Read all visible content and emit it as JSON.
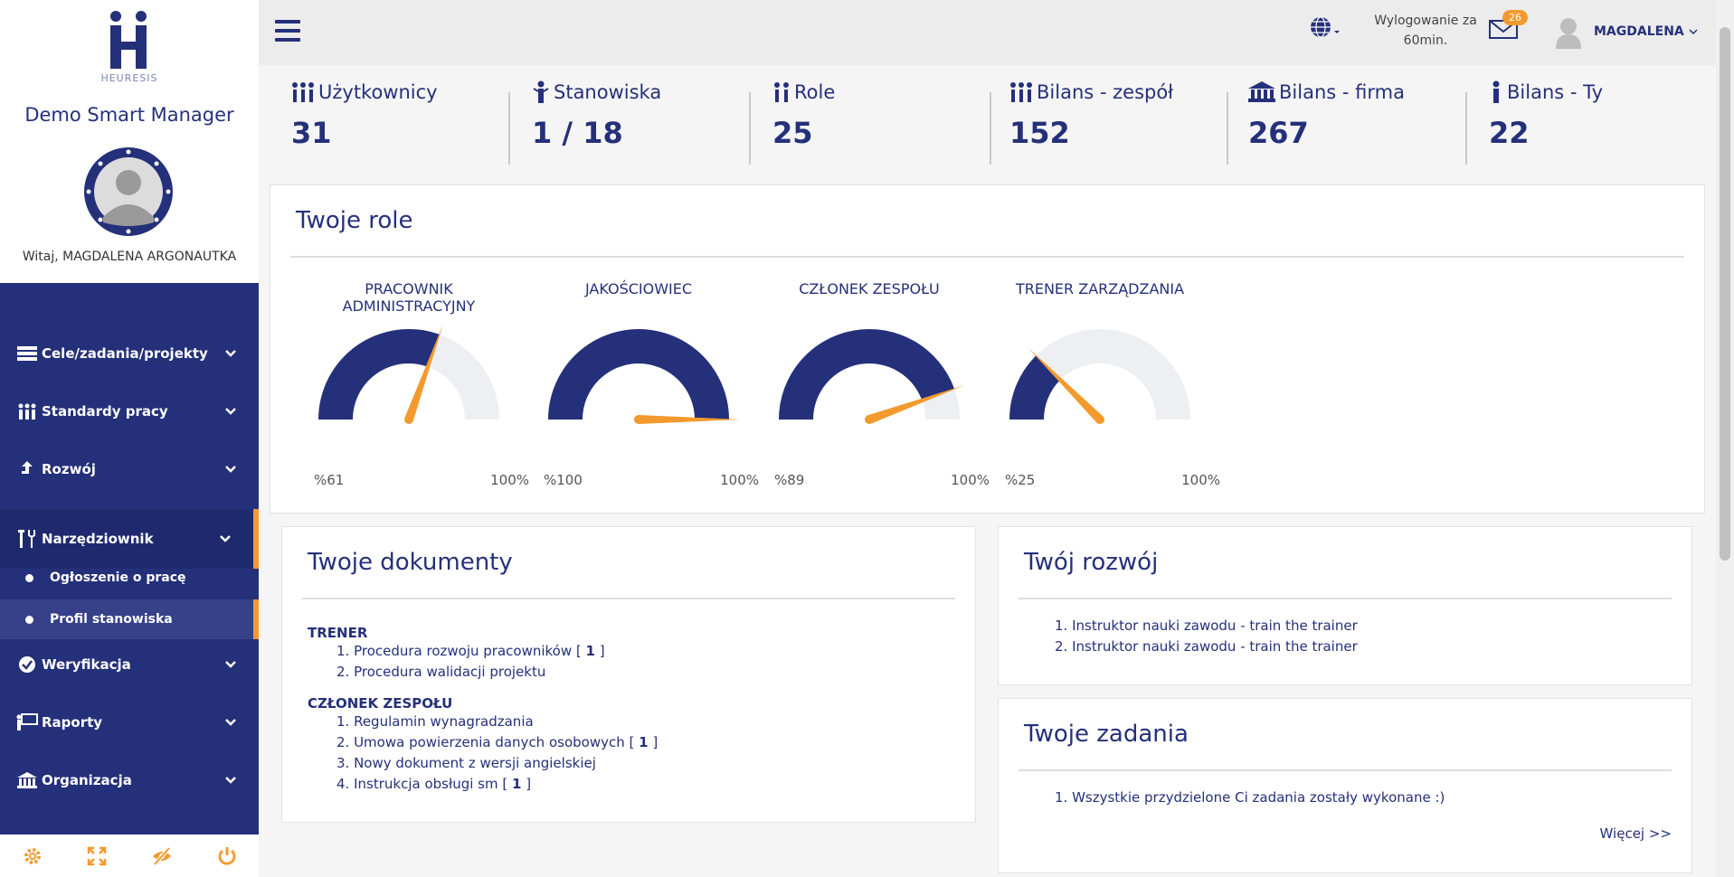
{
  "sidebar": {
    "logo_text": "HEURESIS",
    "app_name": "Demo Smart Manager",
    "greeting": "Witaj, MAGDALENA ARGONAUTKA",
    "items": [
      {
        "label": "Cele/zadania/projekty",
        "icon": "list-icon"
      },
      {
        "label": "Standardy pracy",
        "icon": "team-icon"
      },
      {
        "label": "Rozwój",
        "icon": "arrow-up-icon"
      },
      {
        "label": "Narzędziownik",
        "icon": "tools-icon"
      },
      {
        "label": "Weryfikacja",
        "icon": "check-circle-icon"
      },
      {
        "label": "Raporty",
        "icon": "presentation-icon"
      },
      {
        "label": "Organizacja",
        "icon": "building-icon"
      }
    ],
    "subitems": [
      {
        "label": "Ogłoszenie o pracę"
      },
      {
        "label": "Profil stanowiska"
      }
    ],
    "bottom_icons": [
      "gear-icon",
      "fullscreen-icon",
      "eye-off-icon",
      "power-icon"
    ]
  },
  "header": {
    "logout_text": "Wylogowanie za 60min.",
    "mail_badge": "26",
    "user_name": "MAGDALENA"
  },
  "stats": [
    {
      "title": "Użytkownicy",
      "value": "31"
    },
    {
      "title": "Stanowiska",
      "value": "1 / 18"
    },
    {
      "title": "Role",
      "value": "25"
    },
    {
      "title": "Bilans - zespół",
      "value": "152"
    },
    {
      "title": "Bilans - firma",
      "value": "267"
    },
    {
      "title": "Bilans - Ty",
      "value": "22"
    }
  ],
  "roles": {
    "title": "Twoje role",
    "gauges": [
      {
        "label": "PRACOWNIK ADMINISTRACYJNY",
        "percent": 61,
        "min_label": "%61",
        "max_label": "100%"
      },
      {
        "label": "JAKOŚCIOWIEC",
        "percent": 100,
        "min_label": "%100",
        "max_label": "100%"
      },
      {
        "label": "CZŁONEK ZESPOŁU",
        "percent": 89,
        "min_label": "%89",
        "max_label": "100%"
      },
      {
        "label": "TRENER ZARZĄDZANIA",
        "percent": 25,
        "min_label": "%25",
        "max_label": "100%"
      }
    ]
  },
  "documents": {
    "title": "Twoje dokumenty",
    "groups": [
      {
        "title": "TRENER",
        "items": [
          {
            "text": "1. Procedura rozwoju pracowników",
            "count": "1"
          },
          {
            "text": "2. Procedura walidacji projektu",
            "count": ""
          }
        ]
      },
      {
        "title": "CZŁONEK ZESPOŁU",
        "items": [
          {
            "text": "1. Regulamin wynagradzania",
            "count": ""
          },
          {
            "text": "2. Umowa powierzenia danych osobowych",
            "count": "1"
          },
          {
            "text": "3. Nowy dokument z wersji angielskiej",
            "count": ""
          },
          {
            "text": "4. Instrukcja obsługi sm",
            "count": "1"
          }
        ]
      }
    ]
  },
  "development": {
    "title": "Twój rozwój",
    "items": [
      "1. Instruktor nauki zawodu - train the trainer",
      "2. Instruktor nauki zawodu - train the trainer"
    ]
  },
  "tasks": {
    "title": "Twoje zadania",
    "items": [
      "1. Wszystkie przydzielone Ci zadania zostały wykonane :)"
    ],
    "more_label": "Więcej >>"
  },
  "colors": {
    "navy": "#25307a",
    "accent": "#f39a2e",
    "gauge_bg": "#eeeff2"
  }
}
